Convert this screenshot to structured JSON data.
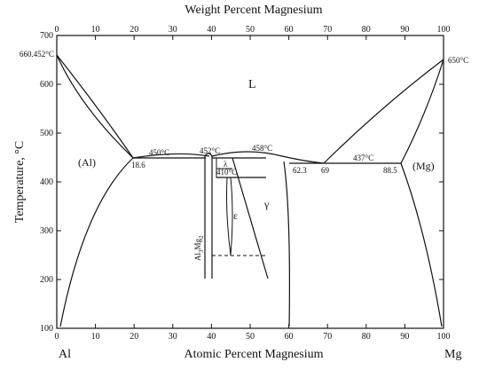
{
  "diagram": {
    "top_axis_title": "Weight Percent Magnesium",
    "bottom_axis_title": "Atomic Percent Magnesium",
    "y_axis_title": "Temperature, °C",
    "left_element": "Al",
    "right_element": "Mg",
    "top_ticks": [
      "0",
      "10",
      "20",
      "30",
      "40",
      "50",
      "60",
      "70",
      "80",
      "90",
      "100"
    ],
    "bottom_ticks": [
      "0",
      "10",
      "20",
      "30",
      "40",
      "50",
      "60",
      "70",
      "80",
      "90",
      "100"
    ],
    "y_ticks": [
      "100",
      "200",
      "300",
      "400",
      "500",
      "600",
      "700"
    ],
    "labels": {
      "al_melt": "660.452°C",
      "mg_melt": "650°C",
      "liquid": "L",
      "al_phase": "(Al)",
      "mg_phase": "(Mg)",
      "gamma": "γ",
      "epsilon": "ε",
      "lambda": "λ",
      "beta_main": "Al",
      "beta_sub1": "3",
      "beta_mg": "Mg",
      "beta_sub2": "2",
      "t450": "450°C",
      "t452": "452°C",
      "t458": "458°C",
      "t437": "437°C",
      "t410": "410°C",
      "c18_6": "18.6",
      "c62_3": "62.3",
      "c69": "69",
      "c88_5": "88.5"
    }
  }
}
